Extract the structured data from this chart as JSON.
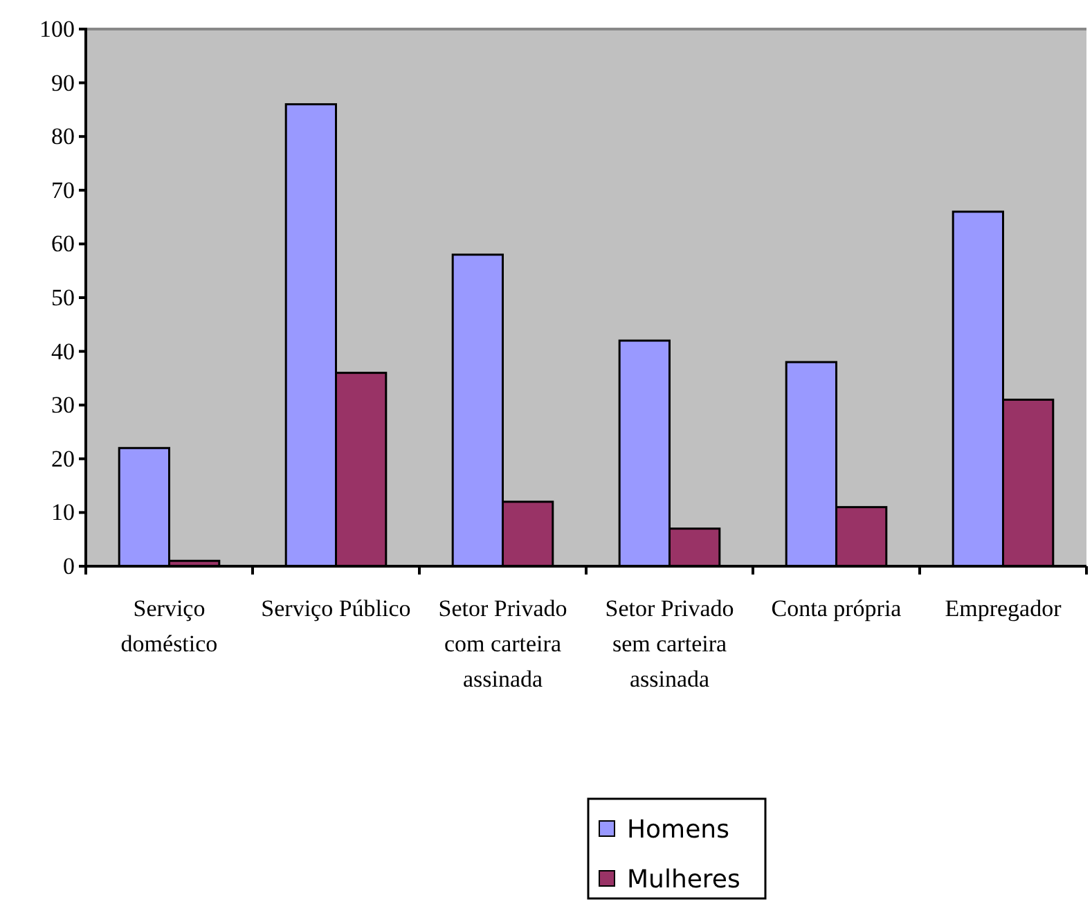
{
  "chart_data": {
    "type": "bar",
    "categories": [
      "Serviço doméstico",
      "Serviço Público",
      "Setor Privado com carteira assinada",
      "Setor Privado sem carteira assinada",
      "Conta própria",
      "Empregador"
    ],
    "series": [
      {
        "name": "Homens",
        "color": "#9999ff",
        "values": [
          22,
          86,
          58,
          42,
          38,
          66
        ]
      },
      {
        "name": "Mulheres",
        "color": "#993366",
        "values": [
          1,
          36,
          12,
          7,
          11,
          31
        ]
      }
    ],
    "ylim": [
      0,
      100
    ],
    "yticks": [
      0,
      10,
      20,
      30,
      40,
      50,
      60,
      70,
      80,
      90,
      100
    ],
    "grid": false,
    "legend": "bottom"
  }
}
